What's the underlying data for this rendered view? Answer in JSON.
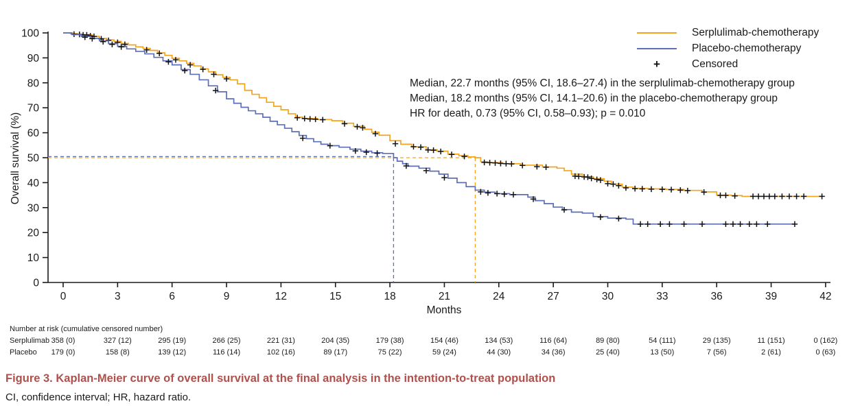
{
  "figure": {
    "caption": "Figure 3.  Kaplan-Meier curve of overall survival at the final analysis in the intention-to-treat population",
    "caption_color": "#AE514C",
    "footnote": "CI, confidence interval; HR, hazard ratio."
  },
  "axes": {
    "x_title": "Months",
    "y_title": "Overall survival (%)",
    "x_ticks": [
      0,
      3,
      6,
      9,
      12,
      15,
      18,
      21,
      24,
      27,
      30,
      33,
      36,
      39,
      42
    ],
    "y_ticks": [
      0,
      10,
      20,
      30,
      40,
      50,
      60,
      70,
      80,
      90,
      100
    ]
  },
  "legend": {
    "items": [
      {
        "label": "Serplulimab-chemotherapy",
        "color": "#F2A41F",
        "type": "line"
      },
      {
        "label": "Placebo-chemotherapy",
        "color": "#5C6EB5",
        "type": "line"
      },
      {
        "label": "Censored",
        "symbol": "+",
        "type": "marker"
      }
    ]
  },
  "annotation": {
    "line1": "Median, 22.7 months (95% CI, 18.6–27.4) in the serplulimab-chemotherapy group",
    "line2": "Median, 18.2 months (95% CI, 14.1–20.6) in the placebo-chemotherapy group",
    "line3": "HR for death, 0.73 (95% CI, 0.58–0.93); p = 0.010"
  },
  "risk_table": {
    "header": "Number at risk (cumulative censored number)",
    "rows": [
      {
        "label": "Serplulimab",
        "values": [
          "358 (0)",
          "327 (12)",
          "295 (19)",
          "266 (25)",
          "221 (31)",
          "204 (35)",
          "179 (38)",
          "154 (46)",
          "134 (53)",
          "116 (64)",
          "89 (80)",
          "54 (111)",
          "29 (135)",
          "11 (151)",
          "0 (162)"
        ]
      },
      {
        "label": "Placebo",
        "values": [
          "179 (0)",
          "158 (8)",
          "139 (12)",
          "116 (14)",
          "102 (16)",
          "89 (17)",
          "75 (22)",
          "59 (24)",
          "44 (30)",
          "34 (36)",
          "25 (40)",
          "13 (50)",
          "7 (56)",
          "2 (61)",
          "0 (63)"
        ]
      }
    ]
  },
  "chart_data": {
    "type": "line",
    "step": "after",
    "title": "",
    "xlabel": "Months",
    "ylabel": "Overall survival (%)",
    "xlim": [
      0,
      42
    ],
    "ylim": [
      0,
      100
    ],
    "grid": false,
    "legend_position": "top-right",
    "medians": {
      "survival_pct": 50,
      "serplulimab_months": 22.7,
      "placebo_months": 18.2
    },
    "series": [
      {
        "name": "Serplulimab-chemotherapy",
        "color": "#F2A41F",
        "points": [
          [
            0,
            100
          ],
          [
            0.4,
            99.7
          ],
          [
            0.8,
            99.4
          ],
          [
            1.2,
            99.2
          ],
          [
            1.6,
            98.6
          ],
          [
            2.0,
            97.8
          ],
          [
            2.4,
            97.2
          ],
          [
            2.8,
            96.6
          ],
          [
            3.2,
            95.8
          ],
          [
            3.6,
            95.2
          ],
          [
            4.0,
            94.4
          ],
          [
            4.4,
            93.8
          ],
          [
            4.8,
            93.0
          ],
          [
            5.2,
            92.0
          ],
          [
            5.6,
            91.0
          ],
          [
            6.0,
            89.8
          ],
          [
            6.4,
            88.8
          ],
          [
            6.8,
            87.8
          ],
          [
            7.2,
            86.8
          ],
          [
            7.6,
            85.6
          ],
          [
            8.0,
            84.4
          ],
          [
            8.4,
            83.2
          ],
          [
            8.8,
            82.2
          ],
          [
            9.2,
            81.2
          ],
          [
            9.6,
            79.6
          ],
          [
            10.0,
            77.0
          ],
          [
            10.4,
            75.4
          ],
          [
            10.8,
            74.0
          ],
          [
            11.2,
            72.2
          ],
          [
            11.6,
            70.6
          ],
          [
            12.0,
            69.2
          ],
          [
            12.4,
            67.6
          ],
          [
            12.8,
            66.2
          ],
          [
            13.2,
            65.7
          ],
          [
            14.0,
            65.3
          ],
          [
            14.8,
            64.8
          ],
          [
            15.4,
            63.8
          ],
          [
            16.0,
            62.6
          ],
          [
            16.6,
            61.4
          ],
          [
            17.0,
            60.2
          ],
          [
            17.4,
            59.0
          ],
          [
            18.0,
            56.8
          ],
          [
            18.6,
            55.4
          ],
          [
            19.2,
            54.4
          ],
          [
            20.0,
            53.2
          ],
          [
            20.6,
            52.6
          ],
          [
            21.2,
            51.4
          ],
          [
            21.8,
            50.8
          ],
          [
            22.3,
            50.3
          ],
          [
            22.7,
            50.0
          ],
          [
            23.0,
            48.4
          ],
          [
            23.4,
            48.0
          ],
          [
            24.2,
            47.6
          ],
          [
            25.2,
            47.0
          ],
          [
            26.4,
            46.3
          ],
          [
            27.2,
            45.8
          ],
          [
            27.6,
            44.8
          ],
          [
            28.0,
            43.4
          ],
          [
            28.6,
            42.4
          ],
          [
            29.2,
            41.6
          ],
          [
            29.8,
            40.6
          ],
          [
            30.2,
            39.4
          ],
          [
            30.8,
            38.2
          ],
          [
            31.4,
            37.7
          ],
          [
            32.2,
            37.5
          ],
          [
            33.2,
            37.3
          ],
          [
            34.2,
            36.9
          ],
          [
            35.2,
            36.3
          ],
          [
            36.0,
            35.0
          ],
          [
            36.8,
            34.8
          ],
          [
            37.4,
            34.5
          ],
          [
            41.8,
            34.5
          ]
        ],
        "censored": [
          [
            0.6,
            99.5
          ],
          [
            0.9,
            99.4
          ],
          [
            1.1,
            99.2
          ],
          [
            1.3,
            99.2
          ],
          [
            1.5,
            98.8
          ],
          [
            1.7,
            98.6
          ],
          [
            2.1,
            97.6
          ],
          [
            2.5,
            97.0
          ],
          [
            3.0,
            96.2
          ],
          [
            3.4,
            95.4
          ],
          [
            4.6,
            93.2
          ],
          [
            5.3,
            91.8
          ],
          [
            6.2,
            89.2
          ],
          [
            7.0,
            87.2
          ],
          [
            7.7,
            85.4
          ],
          [
            8.3,
            83.4
          ],
          [
            9.0,
            81.6
          ],
          [
            12.9,
            66.0
          ],
          [
            13.3,
            65.7
          ],
          [
            13.6,
            65.5
          ],
          [
            13.9,
            65.4
          ],
          [
            14.3,
            65.2
          ],
          [
            15.5,
            63.6
          ],
          [
            16.2,
            62.4
          ],
          [
            16.5,
            62.0
          ],
          [
            17.2,
            59.6
          ],
          [
            18.3,
            55.6
          ],
          [
            19.3,
            54.4
          ],
          [
            19.7,
            54.2
          ],
          [
            20.1,
            53.1
          ],
          [
            20.4,
            53.0
          ],
          [
            20.8,
            52.5
          ],
          [
            21.4,
            51.3
          ],
          [
            22.1,
            50.5
          ],
          [
            23.2,
            48.1
          ],
          [
            23.5,
            48.0
          ],
          [
            23.8,
            47.9
          ],
          [
            24.1,
            47.7
          ],
          [
            24.4,
            47.6
          ],
          [
            24.7,
            47.5
          ],
          [
            25.3,
            46.9
          ],
          [
            26.1,
            46.4
          ],
          [
            26.6,
            46.2
          ],
          [
            28.2,
            42.6
          ],
          [
            28.4,
            42.5
          ],
          [
            28.7,
            42.3
          ],
          [
            28.9,
            42.2
          ],
          [
            29.1,
            41.7
          ],
          [
            29.4,
            41.3
          ],
          [
            29.6,
            41.0
          ],
          [
            30.0,
            39.6
          ],
          [
            30.3,
            39.4
          ],
          [
            30.6,
            38.8
          ],
          [
            31.0,
            37.9
          ],
          [
            31.5,
            37.6
          ],
          [
            31.9,
            37.5
          ],
          [
            32.4,
            37.4
          ],
          [
            33.0,
            37.3
          ],
          [
            33.5,
            37.2
          ],
          [
            34.0,
            37.0
          ],
          [
            34.4,
            36.8
          ],
          [
            35.3,
            36.2
          ],
          [
            36.2,
            34.9
          ],
          [
            36.5,
            34.9
          ],
          [
            37.0,
            34.7
          ],
          [
            38.0,
            34.5
          ],
          [
            38.3,
            34.5
          ],
          [
            38.6,
            34.5
          ],
          [
            38.9,
            34.5
          ],
          [
            39.2,
            34.5
          ],
          [
            39.6,
            34.5
          ],
          [
            40.0,
            34.5
          ],
          [
            40.4,
            34.5
          ],
          [
            40.8,
            34.5
          ],
          [
            41.8,
            34.5
          ]
        ]
      },
      {
        "name": "Placebo-chemotherapy",
        "color": "#5C6EB5",
        "points": [
          [
            0,
            100
          ],
          [
            0.5,
            99.3
          ],
          [
            1.0,
            98.6
          ],
          [
            1.5,
            97.8
          ],
          [
            2.0,
            96.8
          ],
          [
            2.5,
            95.7
          ],
          [
            3.0,
            94.6
          ],
          [
            3.5,
            93.6
          ],
          [
            4.0,
            92.6
          ],
          [
            4.5,
            91.6
          ],
          [
            5.0,
            90.2
          ],
          [
            5.5,
            88.8
          ],
          [
            6.0,
            87.2
          ],
          [
            6.5,
            85.3
          ],
          [
            7.0,
            83.4
          ],
          [
            7.5,
            81.2
          ],
          [
            8.0,
            78.8
          ],
          [
            8.5,
            76.4
          ],
          [
            9.0,
            73.6
          ],
          [
            9.4,
            71.8
          ],
          [
            9.8,
            70.2
          ],
          [
            10.2,
            68.8
          ],
          [
            10.6,
            67.6
          ],
          [
            11.0,
            66.2
          ],
          [
            11.4,
            64.6
          ],
          [
            11.8,
            63.2
          ],
          [
            12.2,
            61.8
          ],
          [
            12.6,
            60.4
          ],
          [
            13.0,
            58.9
          ],
          [
            13.4,
            57.6
          ],
          [
            13.8,
            56.4
          ],
          [
            14.2,
            55.4
          ],
          [
            14.6,
            54.8
          ],
          [
            15.2,
            54.2
          ],
          [
            15.8,
            53.4
          ],
          [
            16.4,
            52.6
          ],
          [
            17.0,
            52.0
          ],
          [
            17.6,
            51.7
          ],
          [
            18.2,
            50.0
          ],
          [
            18.4,
            48.6
          ],
          [
            18.7,
            47.6
          ],
          [
            19.0,
            46.6
          ],
          [
            19.6,
            45.8
          ],
          [
            20.2,
            44.6
          ],
          [
            20.7,
            43.4
          ],
          [
            21.2,
            41.8
          ],
          [
            21.7,
            40.0
          ],
          [
            22.2,
            38.4
          ],
          [
            22.7,
            37.0
          ],
          [
            23.2,
            36.2
          ],
          [
            23.8,
            35.6
          ],
          [
            24.6,
            35.2
          ],
          [
            25.6,
            34.2
          ],
          [
            26.0,
            32.8
          ],
          [
            26.5,
            31.6
          ],
          [
            27.0,
            30.2
          ],
          [
            27.5,
            29.2
          ],
          [
            28.0,
            28.2
          ],
          [
            28.6,
            27.8
          ],
          [
            29.2,
            26.4
          ],
          [
            30.0,
            25.8
          ],
          [
            31.0,
            25.4
          ],
          [
            31.4,
            23.4
          ],
          [
            40.3,
            23.4
          ]
        ],
        "censored": [
          [
            1.2,
            98.3
          ],
          [
            1.6,
            97.7
          ],
          [
            2.2,
            96.5
          ],
          [
            2.7,
            95.4
          ],
          [
            3.2,
            94.4
          ],
          [
            5.8,
            88.4
          ],
          [
            6.7,
            84.9
          ],
          [
            8.4,
            76.9
          ],
          [
            13.2,
            57.8
          ],
          [
            14.7,
            54.8
          ],
          [
            16.1,
            52.7
          ],
          [
            16.7,
            52.2
          ],
          [
            17.3,
            51.8
          ],
          [
            18.9,
            46.7
          ],
          [
            20.0,
            44.8
          ],
          [
            21.0,
            42.0
          ],
          [
            23.0,
            36.3
          ],
          [
            23.4,
            35.9
          ],
          [
            23.9,
            35.6
          ],
          [
            24.3,
            35.4
          ],
          [
            24.8,
            35.2
          ],
          [
            25.9,
            33.4
          ],
          [
            27.6,
            29.1
          ],
          [
            29.6,
            26.2
          ],
          [
            30.6,
            25.6
          ],
          [
            31.8,
            23.4
          ],
          [
            32.2,
            23.4
          ],
          [
            32.9,
            23.4
          ],
          [
            33.4,
            23.4
          ],
          [
            34.2,
            23.4
          ],
          [
            35.2,
            23.4
          ],
          [
            36.5,
            23.4
          ],
          [
            36.9,
            23.4
          ],
          [
            37.3,
            23.4
          ],
          [
            37.8,
            23.4
          ],
          [
            38.2,
            23.4
          ],
          [
            38.8,
            23.4
          ],
          [
            40.3,
            23.4
          ]
        ]
      }
    ]
  }
}
